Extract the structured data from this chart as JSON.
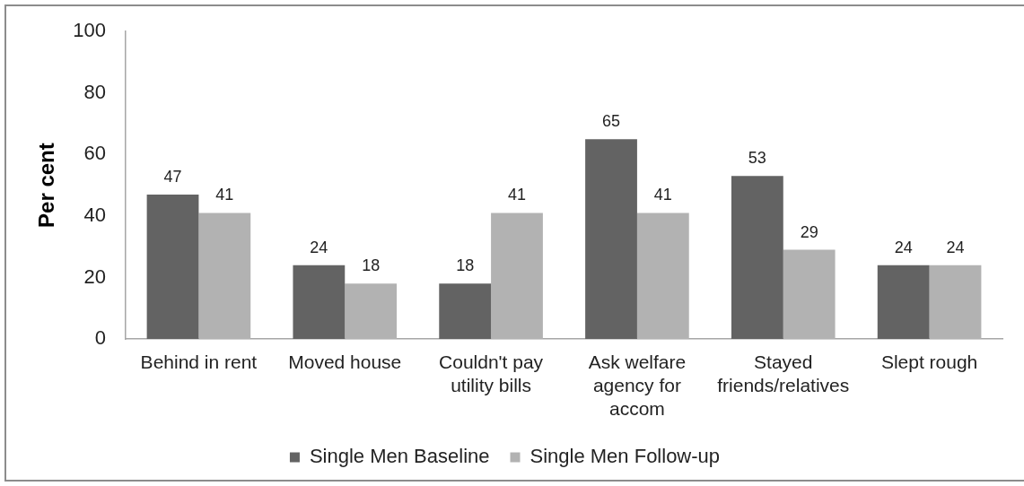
{
  "chart_data": {
    "type": "bar",
    "ylabel": "Per cent",
    "categories": [
      "Behind in rent",
      "Moved house",
      "Couldn't pay utility bills",
      "Ask welfare agency for accom",
      "Stayed friends/relatives",
      "Slept rough"
    ],
    "series": [
      {
        "name": "Single Men Baseline",
        "color": "#636363",
        "values": [
          47,
          24,
          18,
          65,
          53,
          24
        ]
      },
      {
        "name": "Single Men Follow-up",
        "color": "#b2b2b2",
        "values": [
          41,
          18,
          41,
          41,
          29,
          24
        ]
      }
    ],
    "ylim": [
      0,
      100
    ],
    "yticks": [
      0,
      20,
      40,
      60,
      80,
      100
    ],
    "data_labels": true,
    "legend": "bottom"
  }
}
